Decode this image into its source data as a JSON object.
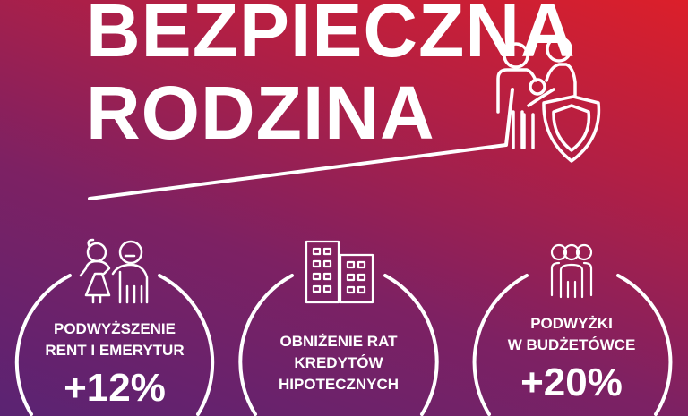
{
  "title": {
    "line1": "BEZPIECZNA",
    "line2": "RODZINA"
  },
  "header_icon": "family-shield-icon",
  "colors": {
    "gradient_top_right": "#dc1f2a",
    "gradient_bottom_left": "#5a2373",
    "foreground": "#ffffff"
  },
  "items": [
    {
      "icon": "elderly-couple-icon",
      "line1": "PODWYŻSZENIE",
      "line2": "RENT I EMERYTUR",
      "value": "+12%"
    },
    {
      "icon": "buildings-icon",
      "line1": "OBNIŻENIE RAT",
      "line2": "KREDYTÓW",
      "line3": "HIPOTECZNYCH"
    },
    {
      "icon": "people-group-icon",
      "line1": "PODWYŻKI",
      "line2": "W BUDŻETÓWCE",
      "value": "+20%"
    }
  ]
}
